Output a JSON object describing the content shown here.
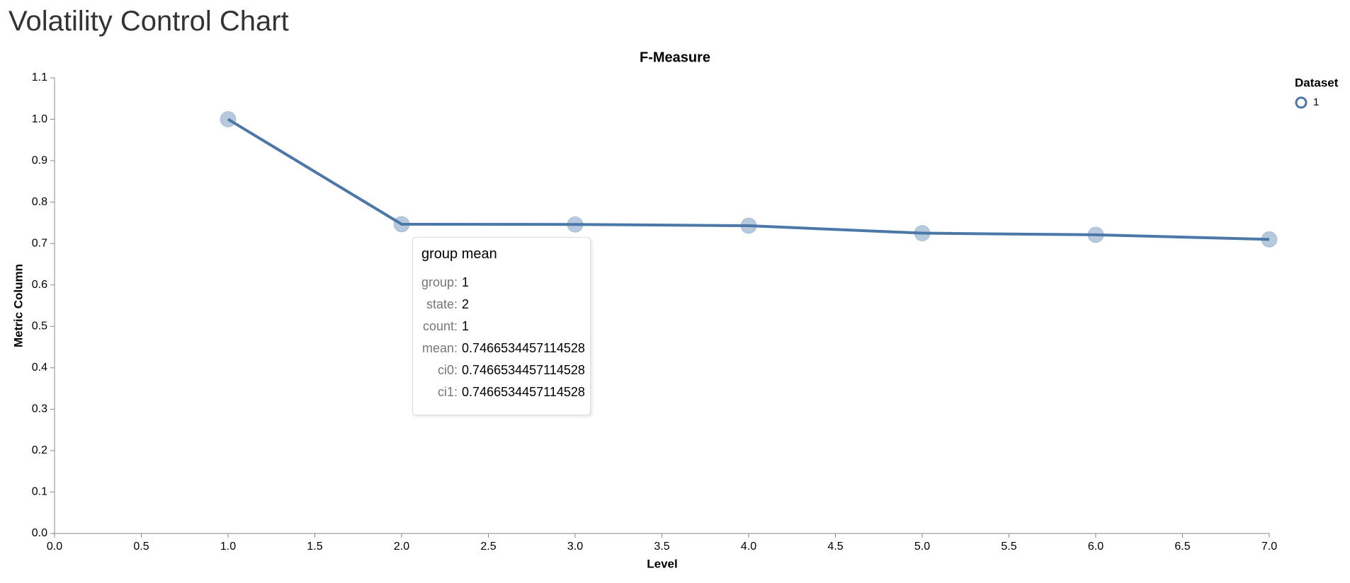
{
  "chart_data": {
    "type": "line",
    "page_title": "Volatility Control Chart",
    "title": "F-Measure",
    "x_label": "Level",
    "y_label": "Metric Column",
    "legend_title": "Dataset",
    "legend": "top-right",
    "x": [
      1,
      2,
      3,
      4,
      5,
      6,
      7
    ],
    "series": [
      {
        "name": "1",
        "color": "#4c78a8",
        "values": [
          1.0,
          0.7466534457114528,
          0.746,
          0.743,
          0.725,
          0.721,
          0.71
        ]
      }
    ],
    "xlim": [
      0,
      7
    ],
    "xticks": [
      {
        "value": 0,
        "label": "0.0"
      },
      0.5,
      {
        "value": 1,
        "label": "1.0"
      },
      1.5,
      {
        "value": 2,
        "label": "2.0"
      },
      2.5,
      {
        "value": 3,
        "label": "3.0"
      },
      3.5,
      {
        "value": 4,
        "label": "4.0"
      },
      4.5,
      {
        "value": 5,
        "label": "5.0"
      },
      5.5,
      {
        "value": 6,
        "label": "6.0"
      },
      6.5,
      {
        "value": 7,
        "label": "7.0"
      }
    ],
    "ylim": [
      0,
      1.1
    ],
    "yticks": [
      {
        "value": 0,
        "label": "0.0"
      },
      0.1,
      0.2,
      0.3,
      0.4,
      0.5,
      0.6,
      0.7,
      0.8,
      0.9,
      {
        "value": 1,
        "label": "1.0"
      },
      1.1
    ],
    "grid": false
  },
  "tooltip": {
    "title": "group mean",
    "rows": [
      [
        "group:",
        "1"
      ],
      [
        "state:",
        "2"
      ],
      [
        "count:",
        "1"
      ],
      [
        "mean:",
        "0.7466534457114528"
      ],
      [
        "ci0:",
        "0.7466534457114528"
      ],
      [
        "ci1:",
        "0.7466534457114528"
      ]
    ]
  }
}
